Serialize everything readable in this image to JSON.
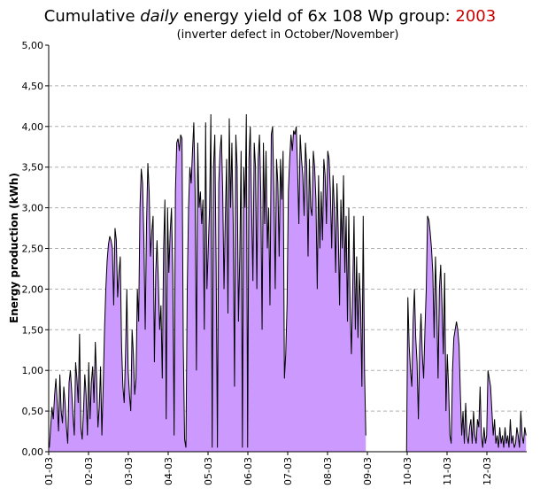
{
  "title": {
    "prefix": "Cumulative ",
    "italic": "daily",
    "middle": "  energy yield of 6x 108 Wp group: ",
    "year": "2003",
    "year_color": "#cc0000"
  },
  "subtitle": "(inverter defect in October/November)",
  "chart_data": {
    "type": "area",
    "title": "Cumulative daily  energy yield of 6x 108 Wp group: 2003",
    "subtitle": "(inverter defect in October/November)",
    "xlabel": "",
    "ylabel": "Energy production (kWh)",
    "ylim": [
      0,
      5
    ],
    "yticks": [
      "0,00",
      "0,50",
      "1,00",
      "1,50",
      "2,00",
      "2,50",
      "3,00",
      "3,50",
      "4,00",
      "4,50",
      "5,00"
    ],
    "xticks": [
      "01-03",
      "02-03",
      "03-03",
      "04-03",
      "05-03",
      "06-03",
      "07-03",
      "08-03",
      "09-03",
      "10-03",
      "11-03",
      "12-03"
    ],
    "grid": true,
    "fill_color": "#cc99ff",
    "line_color": "#000000",
    "series": [
      {
        "x_start": "2003-01-01",
        "values": [
          0.05,
          0.3,
          0.55,
          0.4,
          0.7,
          0.9,
          0.6,
          0.25,
          0.95,
          0.5,
          0.35,
          0.8,
          0.6,
          0.3,
          0.1,
          0.85,
          1.0,
          0.75,
          0.45,
          0.2,
          1.1,
          0.9,
          0.6,
          1.45,
          0.3,
          0.15,
          0.5,
          0.95,
          0.7,
          0.2,
          1.1,
          0.4,
          0.85,
          1.05,
          0.6,
          1.35,
          0.9,
          0.3,
          0.55,
          1.05,
          0.2,
          0.8,
          1.5,
          2.0,
          2.35,
          2.55,
          2.65,
          2.6,
          2.5,
          1.8,
          2.75,
          2.6,
          1.9,
          2.2,
          2.4,
          1.3,
          0.8,
          0.6,
          1.2,
          2.0,
          1.0,
          0.7,
          0.5,
          1.5,
          1.2,
          0.7,
          0.9,
          2.0,
          1.6,
          3.0,
          3.48,
          3.3,
          2.6,
          1.5,
          2.8,
          3.55,
          3.2,
          2.4,
          2.7,
          2.9,
          1.1,
          2.2,
          2.6,
          2.1,
          1.5,
          1.8,
          0.9,
          2.5,
          3.1,
          0.4,
          3.0,
          2.2,
          2.7,
          3.0,
          2.2,
          0.2,
          3.2,
          3.8,
          3.85,
          3.7,
          3.9,
          3.85,
          1.3,
          0.15,
          0.05,
          2.0,
          3.0,
          3.5,
          3.3,
          3.7,
          4.05,
          3.2,
          1.0,
          3.8,
          3.0,
          3.2,
          2.8,
          3.1,
          1.5,
          4.05,
          2.0,
          2.5,
          3.0,
          4.15,
          0.05,
          3.5,
          3.9,
          2.3,
          0.05,
          3.3,
          3.7,
          3.9,
          3.2,
          2.0,
          2.9,
          3.6,
          1.7,
          4.1,
          3.0,
          3.8,
          2.8,
          0.8,
          3.9,
          3.5,
          1.6,
          2.4,
          3.7,
          0.05,
          3.5,
          3.0,
          4.15,
          0.05,
          3.6,
          4.0,
          3.0,
          2.1,
          3.8,
          3.5,
          2.0,
          3.6,
          3.9,
          3.2,
          1.5,
          3.8,
          2.8,
          3.7,
          2.5,
          3.0,
          1.8,
          3.9,
          4.0,
          3.2,
          2.0,
          3.6,
          3.3,
          2.4,
          3.6,
          3.1,
          3.7,
          0.9,
          1.2,
          1.8,
          3.2,
          3.6,
          3.9,
          3.7,
          3.95,
          3.9,
          4.0,
          3.5,
          2.8,
          3.9,
          3.6,
          3.4,
          2.9,
          3.8,
          3.5,
          2.4,
          3.6,
          3.0,
          2.9,
          3.7,
          3.5,
          3.1,
          2.0,
          3.4,
          2.5,
          3.2,
          2.6,
          3.6,
          3.4,
          2.8,
          3.7,
          3.6,
          3.2,
          2.5,
          3.4,
          3.0,
          2.2,
          3.3,
          2.7,
          1.8,
          3.1,
          2.5,
          3.4,
          2.2,
          2.9,
          1.6,
          3.0,
          1.8,
          1.2,
          2.0,
          2.9,
          1.5,
          2.4,
          1.4,
          2.2,
          1.8,
          0.8,
          2.9,
          1.0,
          0.2,
          null,
          null,
          null,
          null,
          null,
          null,
          null,
          null,
          null,
          null,
          null,
          null,
          null,
          null,
          null,
          null,
          null,
          null,
          null,
          null,
          null,
          null,
          null,
          null,
          null,
          null,
          null,
          null,
          null,
          null,
          0.0,
          1.9,
          1.3,
          1.0,
          0.8,
          1.6,
          2.0,
          1.4,
          1.1,
          0.4,
          1.3,
          1.7,
          1.2,
          0.9,
          1.5,
          2.0,
          2.9,
          2.85,
          2.7,
          2.5,
          2.2,
          1.4,
          2.4,
          1.8,
          0.9,
          2.0,
          2.3,
          1.8,
          1.2,
          2.2,
          0.5,
          1.2,
          0.8,
          0.2,
          0.1,
          1.0,
          1.4,
          1.5,
          1.6,
          1.5,
          1.3,
          0.7,
          0.2,
          0.5,
          0.1,
          0.6,
          0.2,
          0.1,
          0.3,
          0.4,
          0.1,
          0.5,
          0.2,
          0.1,
          0.4,
          0.3,
          0.8,
          0.2,
          0.05,
          0.3,
          0.1,
          0.2,
          1.0,
          0.9,
          0.8,
          0.5,
          0.2,
          0.4,
          0.1,
          0.2,
          0.05,
          0.3,
          0.1,
          0.2,
          0.05,
          0.3,
          0.1,
          0.2,
          0.05,
          0.4,
          0.1,
          0.2,
          0.05,
          0.1,
          0.3,
          0.2,
          0.05,
          0.5,
          0.2,
          0.1,
          0.3,
          0.2
        ]
      }
    ]
  }
}
